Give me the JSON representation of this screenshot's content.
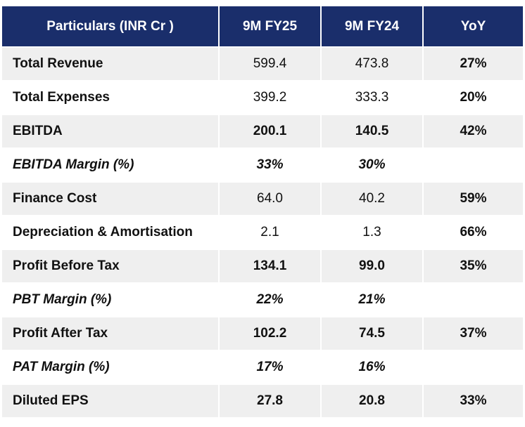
{
  "header": [
    "Particulars (INR Cr )",
    "9M FY25",
    "9M FY24",
    "YoY"
  ],
  "rows": [
    {
      "label": "Total Revenue",
      "fy25": "599.4",
      "fy24": "473.8",
      "yoy": "27%"
    },
    {
      "label": "Total Expenses",
      "fy25": "399.2",
      "fy24": "333.3",
      "yoy": "20%"
    },
    {
      "label": "EBITDA",
      "fy25": "200.1",
      "fy24": "140.5",
      "yoy": "42%"
    },
    {
      "label": "EBITDA Margin (%)",
      "fy25": "33%",
      "fy24": "30%",
      "yoy": ""
    },
    {
      "label": "Finance Cost",
      "fy25": "64.0",
      "fy24": "40.2",
      "yoy": "59%"
    },
    {
      "label": "Depreciation & Amortisation",
      "fy25": "2.1",
      "fy24": "1.3",
      "yoy": "66%"
    },
    {
      "label": "Profit Before Tax",
      "fy25": "134.1",
      "fy24": "99.0",
      "yoy": "35%"
    },
    {
      "label": "PBT Margin (%)",
      "fy25": "22%",
      "fy24": "21%",
      "yoy": ""
    },
    {
      "label": "Profit After Tax",
      "fy25": "102.2",
      "fy24": "74.5",
      "yoy": "37%"
    },
    {
      "label": "PAT Margin (%)",
      "fy25": "17%",
      "fy24": "16%",
      "yoy": ""
    },
    {
      "label": "Diluted EPS",
      "fy25": "27.8",
      "fy24": "20.8",
      "yoy": "33%"
    }
  ],
  "colors": {
    "header_bg": "#1a2e6b",
    "header_text": "#ffffff",
    "row_shade": "#efefef"
  }
}
